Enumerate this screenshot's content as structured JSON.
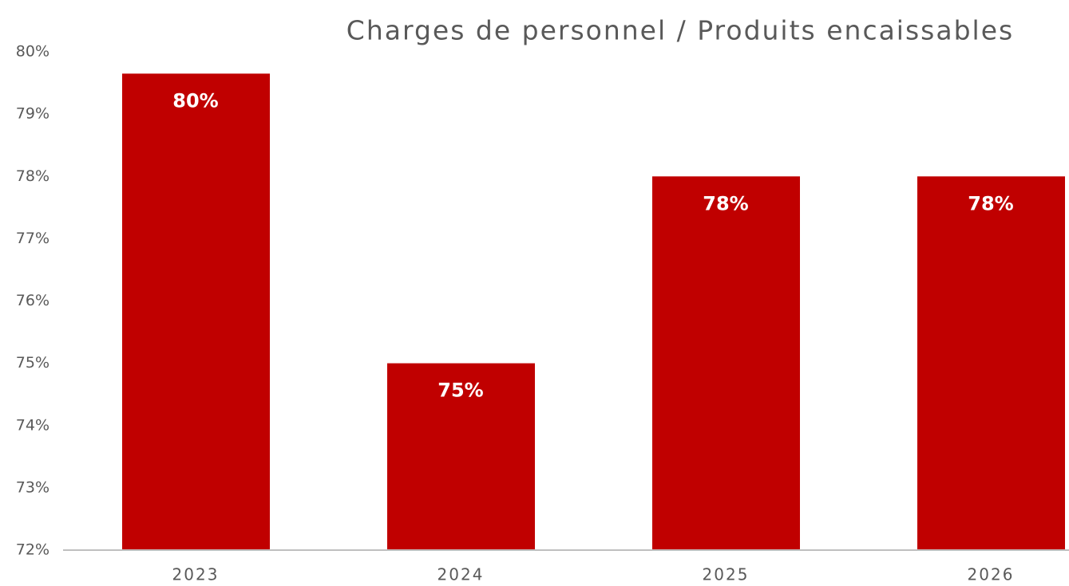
{
  "chart_data": {
    "type": "bar",
    "title": "Charges de personnel / Produits encaissables",
    "categories": [
      "2023",
      "2024",
      "2025",
      "2026"
    ],
    "values": [
      79.65,
      75,
      78,
      78
    ],
    "value_labels": [
      "80%",
      "75%",
      "78%",
      "78%"
    ],
    "color": "#c00000",
    "ylim": [
      72,
      80
    ],
    "yticks": [
      {
        "value": 72,
        "label": "72%"
      },
      {
        "value": 73,
        "label": "73%"
      },
      {
        "value": 74,
        "label": "74%"
      },
      {
        "value": 75,
        "label": "75%"
      },
      {
        "value": 76,
        "label": "76%"
      },
      {
        "value": 77,
        "label": "77%"
      },
      {
        "value": 78,
        "label": "78%"
      },
      {
        "value": 79,
        "label": "79%"
      },
      {
        "value": 80,
        "label": "80%"
      }
    ],
    "grid": false
  }
}
